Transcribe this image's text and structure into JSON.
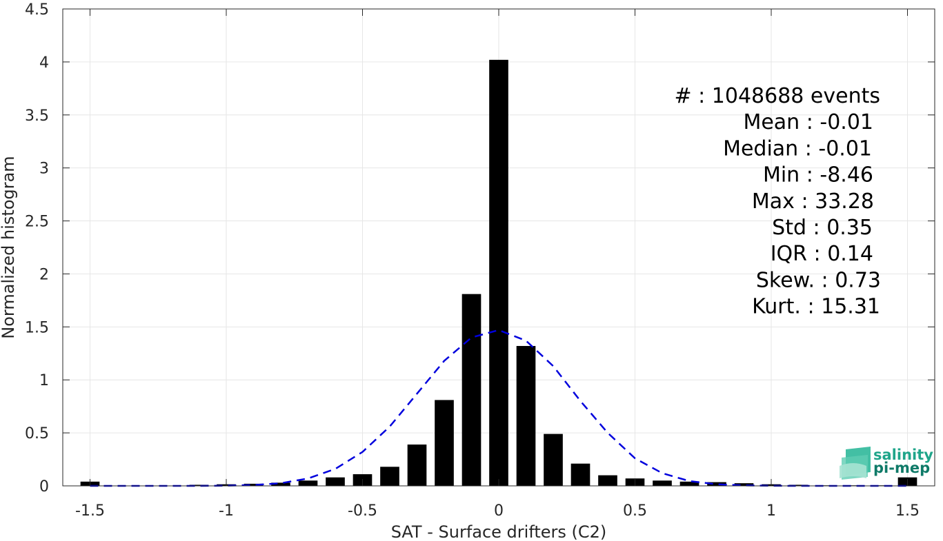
{
  "chart_data": {
    "type": "bar",
    "xlabel": "SAT - Surface drifters (C2)",
    "ylabel": "Normalized histogram",
    "xlim": [
      -1.6,
      1.6
    ],
    "ylim": [
      0,
      4.5
    ],
    "xticks": [
      -1.5,
      -1,
      -0.5,
      0,
      0.5,
      1,
      1.5
    ],
    "xtick_labels": [
      "-1.5",
      "-1",
      "-0.5",
      "0",
      "0.5",
      "1",
      "1.5"
    ],
    "yticks": [
      0,
      0.5,
      1,
      1.5,
      2,
      2.5,
      3,
      3.5,
      4,
      4.5
    ],
    "ytick_labels": [
      "0",
      "0.5",
      "1",
      "1.5",
      "2",
      "2.5",
      "3",
      "3.5",
      "4",
      "4.5"
    ],
    "grid": true,
    "bar_color": "#000000",
    "bar_width": 0.07,
    "bars": [
      {
        "x": -1.5,
        "y": 0.04
      },
      {
        "x": -1.4,
        "y": 0.0
      },
      {
        "x": -1.3,
        "y": 0.0
      },
      {
        "x": -1.2,
        "y": 0.0
      },
      {
        "x": -1.1,
        "y": 0.01
      },
      {
        "x": -1.0,
        "y": 0.015
      },
      {
        "x": -0.9,
        "y": 0.02
      },
      {
        "x": -0.8,
        "y": 0.03
      },
      {
        "x": -0.7,
        "y": 0.05
      },
      {
        "x": -0.6,
        "y": 0.08
      },
      {
        "x": -0.5,
        "y": 0.11
      },
      {
        "x": -0.4,
        "y": 0.18
      },
      {
        "x": -0.3,
        "y": 0.39
      },
      {
        "x": -0.2,
        "y": 0.81
      },
      {
        "x": -0.1,
        "y": 1.81
      },
      {
        "x": 0.0,
        "y": 4.02
      },
      {
        "x": 0.1,
        "y": 1.32
      },
      {
        "x": 0.2,
        "y": 0.49
      },
      {
        "x": 0.3,
        "y": 0.21
      },
      {
        "x": 0.4,
        "y": 0.1
      },
      {
        "x": 0.5,
        "y": 0.07
      },
      {
        "x": 0.6,
        "y": 0.05
      },
      {
        "x": 0.7,
        "y": 0.04
      },
      {
        "x": 0.8,
        "y": 0.035
      },
      {
        "x": 0.9,
        "y": 0.025
      },
      {
        "x": 1.0,
        "y": 0.015
      },
      {
        "x": 1.1,
        "y": 0.01
      },
      {
        "x": 1.2,
        "y": 0.005
      },
      {
        "x": 1.3,
        "y": 0.005
      },
      {
        "x": 1.4,
        "y": 0.005
      },
      {
        "x": 1.5,
        "y": 0.08
      }
    ],
    "fit_curve": {
      "style": "dashed",
      "color": "#0000dd",
      "x": [
        -1.5,
        -1.4,
        -1.3,
        -1.2,
        -1.1,
        -1.0,
        -0.9,
        -0.8,
        -0.7,
        -0.6,
        -0.5,
        -0.4,
        -0.3,
        -0.2,
        -0.1,
        0.0,
        0.1,
        0.2,
        0.3,
        0.4,
        0.5,
        0.6,
        0.7,
        0.8,
        0.9,
        1.0,
        1.1,
        1.2,
        1.3,
        1.4,
        1.5
      ],
      "y": [
        0.0,
        0.0,
        0.0,
        0.0,
        0.0,
        0.002,
        0.008,
        0.025,
        0.07,
        0.16,
        0.32,
        0.56,
        0.87,
        1.18,
        1.4,
        1.47,
        1.37,
        1.13,
        0.8,
        0.5,
        0.26,
        0.12,
        0.045,
        0.015,
        0.004,
        0.001,
        0.0,
        0.0,
        0.0,
        0.0,
        0.0
      ]
    },
    "stats": [
      {
        "label": "#  : 1048688 events"
      },
      {
        "label": "Mean : -0.01"
      },
      {
        "label": "Median : -0.01"
      },
      {
        "label": "Min : -8.46"
      },
      {
        "label": "Max : 33.28"
      },
      {
        "label": "Std : 0.35"
      },
      {
        "label": "IQR : 0.14"
      },
      {
        "label": "Skew. : 0.73"
      },
      {
        "label": "Kurt. : 15.31"
      }
    ]
  },
  "logo": {
    "line1": "salinity",
    "line2": "pi-mep",
    "color1": "#1fa58a",
    "color2": "#0f7a68"
  }
}
